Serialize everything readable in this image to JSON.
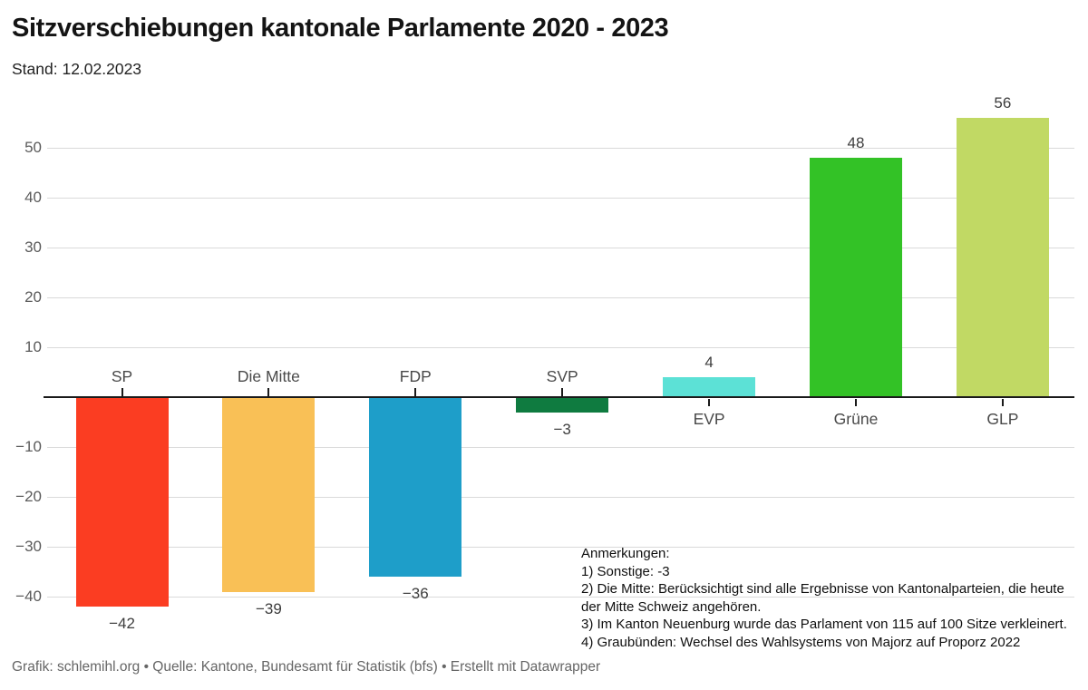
{
  "header": {
    "title": "Sitzverschiebungen kantonale Parlamente 2020 - 2023",
    "subtitle": "Stand: 12.02.2023"
  },
  "chart_data": {
    "type": "bar",
    "title": "Sitzverschiebungen kantonale Parlamente 2020 - 2023",
    "subtitle": "Stand: 12.02.2023",
    "categories": [
      "SP",
      "Die Mitte",
      "FDP",
      "SVP",
      "EVP",
      "Grüne",
      "GLP"
    ],
    "values": [
      -42,
      -39,
      -36,
      -3,
      4,
      48,
      56
    ],
    "value_labels": [
      "−42",
      "−39",
      "−36",
      "−3",
      "4",
      "48",
      "56"
    ],
    "bar_colors": [
      "#fb3d22",
      "#f9c056",
      "#1e9ec9",
      "#0f7b40",
      "#5ce1d6",
      "#33c226",
      "#c1d964"
    ],
    "y_ticks": [
      50,
      40,
      30,
      20,
      10,
      -10,
      -20,
      -30,
      -40
    ],
    "y_tick_labels": [
      "50",
      "40",
      "30",
      "20",
      "10",
      "−10",
      "−20",
      "−30",
      "−40"
    ],
    "ylim": [
      -44,
      58
    ],
    "xlabel": "",
    "ylabel": "",
    "grid": true,
    "zero_line": true,
    "legend": "none"
  },
  "annotations": {
    "heading": "Anmerkungen:",
    "notes": [
      "1) Sonstige: -3",
      "2) Die Mitte: Berücksichtigt sind alle Ergebnisse von Kantonalparteien, die heute der Mitte Schweiz angehören.",
      "3) Im Kanton Neuenburg wurde das Parlament von 115 auf 100 Sitze verkleinert.",
      "4) Graubünden: Wechsel des Wahlsystems von Majorz auf Proporz 2022"
    ]
  },
  "footer": {
    "text": "Grafik: schlemihl.org • Quelle: Kantone, Bundesamt für Statistik (bfs) • Erstellt mit Datawrapper"
  },
  "colors": {
    "background": "#ffffff",
    "grid": "#dadada",
    "zero_line": "#1a1a1a",
    "axis_label": "#5b5b5b",
    "category_label": "#494949",
    "value_label": "#3d3d3d",
    "title": "#141414",
    "footer": "#666666"
  }
}
